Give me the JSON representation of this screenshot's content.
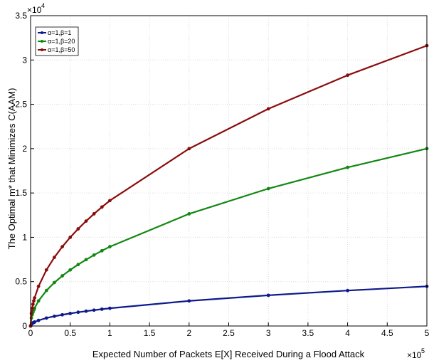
{
  "chart_data": {
    "type": "line",
    "xlabel": "Expected Number of Packets E[X] Received During a Flood Attack",
    "ylabel": "The Optimal m* that Minimizes C(AAM)",
    "x_multiplier": {
      "base": "×10",
      "exponent": "5"
    },
    "y_multiplier": {
      "base": "×10",
      "exponent": "4"
    },
    "xlim": [
      0,
      5
    ],
    "ylim": [
      0,
      3.5
    ],
    "xticks": [
      "0",
      "0.5",
      "1",
      "1.5",
      "2",
      "2.5",
      "3",
      "3.5",
      "4",
      "4.5",
      "5"
    ],
    "yticks": [
      "0",
      "0.5",
      "1",
      "1.5",
      "2",
      "2.5",
      "3",
      "3.5"
    ],
    "grid": true,
    "legend_position": "top-left",
    "x": [
      0,
      0.01,
      0.02,
      0.03,
      0.04,
      0.05,
      0.1,
      0.2,
      0.3,
      0.4,
      0.5,
      0.6,
      0.7,
      0.8,
      0.9,
      1.0,
      2.0,
      3.0,
      4.0,
      5.0
    ],
    "series": [
      {
        "name": "α=1,β=1",
        "color": "#0d1a8c",
        "values": [
          0,
          0.0447,
          0.0632,
          0.0775,
          0.0894,
          0.1,
          0.1414,
          0.2,
          0.2449,
          0.2828,
          0.3162,
          0.3464,
          0.3742,
          0.4,
          0.4243,
          0.4472,
          0.6325,
          0.7746,
          0.8944,
          1.0
        ]
      },
      {
        "name": "α=1,β=20",
        "color": "#118811",
        "values": [
          0,
          0.0447,
          0.0632,
          0.0775,
          0.0894,
          0.1,
          0.1414,
          0.2,
          0.2449,
          0.2828,
          0.3162,
          0.3464,
          0.3742,
          0.4,
          0.4243,
          0.4472,
          0.6325,
          0.7746,
          0.8944,
          1.0
        ]
      },
      {
        "name": "α=1,β=50",
        "color": "#8b0b0b",
        "values": [
          0,
          0.0447,
          0.0632,
          0.0775,
          0.0894,
          0.1,
          0.1414,
          0.2,
          0.2449,
          0.2828,
          0.3162,
          0.3464,
          0.3742,
          0.4,
          0.4243,
          0.4472,
          0.6325,
          0.7746,
          0.8944,
          1.0
        ]
      }
    ],
    "series_scale": [
      0.447,
      2.0,
      3.162
    ]
  }
}
